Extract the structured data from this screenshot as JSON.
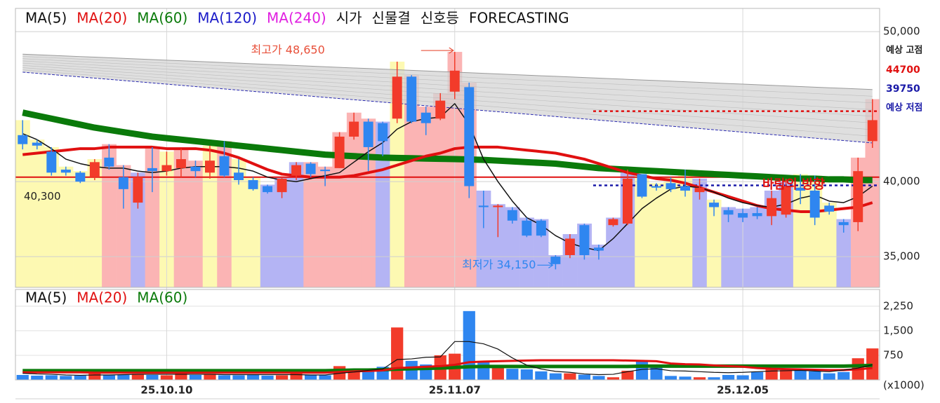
{
  "chart_data": {
    "type": "candlestick",
    "legend_extra": [
      {
        "label": "MA(120)",
        "color": "#1a1ac8"
      },
      {
        "label": "MA(240)",
        "color": "#e020e0"
      }
    ],
    "indicators": [
      "시가",
      "신물결",
      "신호등",
      "FORECASTING"
    ],
    "categories": [
      null,
      null,
      null,
      null,
      null,
      null,
      null,
      null,
      null,
      null,
      "25.10.10",
      null,
      null,
      null,
      null,
      null,
      null,
      null,
      null,
      null,
      null,
      null,
      null,
      null,
      null,
      null,
      null,
      null,
      null,
      null,
      "25.11.07",
      null,
      null,
      null,
      null,
      null,
      null,
      null,
      null,
      null,
      null,
      null,
      null,
      null,
      null,
      null,
      null,
      null,
      null,
      null,
      "25.12.05",
      null,
      null,
      null,
      null,
      null,
      null,
      null,
      null,
      null
    ],
    "open": [
      43100,
      42600,
      42000,
      40800,
      40600,
      40300,
      41600,
      40300,
      38600,
      40900,
      40700,
      40900,
      41000,
      40600,
      41700,
      40600,
      40100,
      39700,
      39300,
      40400,
      41200,
      40800,
      40900,
      43000,
      44000,
      43900,
      44200,
      47000,
      44600,
      44200,
      46000,
      46300,
      38400,
      38300,
      38100,
      37400,
      37400,
      35000,
      35100,
      37100,
      35600,
      37100,
      37200,
      40500,
      39700,
      39900,
      39700,
      39300,
      38600,
      38100,
      37900,
      37900,
      37700,
      37800,
      39600,
      39400,
      38400,
      37300,
      37300,
      42700
    ],
    "high": [
      44100,
      42800,
      42300,
      41000,
      40700,
      41500,
      42500,
      41100,
      40600,
      42300,
      42000,
      42200,
      41400,
      42400,
      42700,
      41500,
      40300,
      39800,
      40300,
      41300,
      41300,
      41000,
      43300,
      44600,
      44200,
      44000,
      48000,
      47100,
      45000,
      45900,
      48650,
      46600,
      39400,
      38500,
      38300,
      37600,
      37500,
      35100,
      36500,
      37200,
      35800,
      37600,
      40800,
      40500,
      39900,
      40300,
      40800,
      40200,
      38800,
      38300,
      38200,
      38300,
      39400,
      40200,
      40500,
      40400,
      38600,
      37500,
      41600,
      45500
    ],
    "low": [
      42150,
      42150,
      40400,
      40400,
      39900,
      40100,
      40800,
      38200,
      38200,
      39300,
      40400,
      40300,
      40300,
      40200,
      40300,
      39800,
      39400,
      39200,
      38900,
      40100,
      40300,
      39700,
      40900,
      42800,
      40700,
      41700,
      43900,
      43900,
      43100,
      44100,
      45500,
      38900,
      36900,
      36300,
      37200,
      36300,
      36300,
      34150,
      34900,
      34800,
      34800,
      37000,
      37100,
      38900,
      39400,
      39300,
      39000,
      38800,
      37700,
      37300,
      37300,
      37500,
      37100,
      37600,
      38500,
      37100,
      37800,
      36600,
      36700,
      42250
    ],
    "close": [
      42500,
      42400,
      40600,
      40600,
      40000,
      41300,
      41000,
      39500,
      40300,
      40700,
      41100,
      41500,
      40700,
      41400,
      40400,
      40100,
      39500,
      39300,
      40200,
      41100,
      40500,
      40700,
      43000,
      44000,
      42300,
      42700,
      47000,
      44000,
      43900,
      45400,
      47400,
      39700,
      38300,
      38400,
      37400,
      36400,
      36400,
      34500,
      36200,
      35100,
      35400,
      37500,
      40200,
      39000,
      39600,
      39500,
      39400,
      39600,
      38300,
      37800,
      37600,
      37700,
      38900,
      39700,
      39400,
      37600,
      38000,
      37100,
      40700,
      44100
    ],
    "up_color": "#f23b2a",
    "down_color": "#2f86f0",
    "series": [
      {
        "name": "MA(5)",
        "color": "#111111",
        "width": 1.5,
        "values": [
          43200,
          42800,
          42200,
          41500,
          41200,
          41000,
          40900,
          40900,
          40700,
          40600,
          40700,
          40900,
          41000,
          41000,
          41000,
          40900,
          40700,
          40300,
          40100,
          40000,
          40200,
          40400,
          40600,
          41300,
          42000,
          42600,
          43500,
          44000,
          44200,
          44300,
          45200,
          43800,
          41500,
          40000,
          38700,
          37600,
          37100,
          36400,
          35900,
          35600,
          35400,
          36200,
          37200,
          38200,
          38900,
          39500,
          39700,
          39600,
          39300,
          38900,
          38600,
          38400,
          38300,
          38500,
          38900,
          39100,
          38700,
          38600,
          39000,
          39700
        ]
      },
      {
        "name": "MA(20)",
        "color": "#e01010",
        "width": 4,
        "values": [
          41800,
          41900,
          42000,
          42100,
          42200,
          42200,
          42300,
          42300,
          42300,
          42300,
          42200,
          42200,
          42200,
          42100,
          41900,
          41600,
          41200,
          40800,
          40500,
          40400,
          40300,
          40300,
          40300,
          40400,
          40600,
          40800,
          41100,
          41400,
          41700,
          41900,
          42200,
          42300,
          42300,
          42300,
          42200,
          42100,
          42000,
          41900,
          41700,
          41500,
          41200,
          40900,
          40600,
          40400,
          40200,
          40100,
          39900,
          39600,
          39300,
          39000,
          38700,
          38400,
          38200,
          38100,
          38000,
          38000,
          38100,
          38200,
          38300,
          38600
        ]
      },
      {
        "name": "MA(60)",
        "color": "#0a7a0a",
        "width": 9,
        "values": [
          44600,
          44400,
          44200,
          44000,
          43800,
          43600,
          43450,
          43300,
          43150,
          43000,
          42900,
          42800,
          42700,
          42600,
          42500,
          42400,
          42300,
          42200,
          42100,
          42000,
          41900,
          41800,
          41750,
          41700,
          41650,
          41600,
          41580,
          41560,
          41540,
          41520,
          41500,
          41480,
          41450,
          41400,
          41350,
          41300,
          41250,
          41200,
          41100,
          41000,
          40900,
          40850,
          40800,
          40750,
          40700,
          40650,
          40600,
          40550,
          40500,
          40450,
          40400,
          40350,
          40300,
          40250,
          40200,
          40200,
          40150,
          40150,
          40100,
          40100
        ]
      }
    ],
    "forecast": {
      "fill": "#d4d4d4",
      "edge": "#9a9a9a",
      "lower_color": "#2a2ab0",
      "upper": [
        48500,
        48460,
        48420,
        48380,
        48340,
        48300,
        48260,
        48220,
        48180,
        48140,
        48100,
        48060,
        48020,
        47980,
        47940,
        47900,
        47860,
        47820,
        47780,
        47740,
        47700,
        47660,
        47620,
        47580,
        47540,
        47500,
        47460,
        47420,
        47380,
        47340,
        47300,
        47260,
        47220,
        47180,
        47140,
        47100,
        47060,
        47020,
        46980,
        46940,
        46900,
        46860,
        46820,
        46780,
        46740,
        46700,
        46660,
        46620,
        46580,
        46540,
        46500,
        46460,
        46420,
        46380,
        46340,
        46300,
        46260,
        46220,
        46180,
        46140
      ],
      "lower": [
        47300,
        47220,
        47140,
        47060,
        46980,
        46900,
        46820,
        46740,
        46660,
        46580,
        46500,
        46420,
        46340,
        46260,
        46180,
        46100,
        46020,
        45940,
        45860,
        45780,
        45700,
        45620,
        45540,
        45460,
        45380,
        45300,
        45220,
        45140,
        45060,
        44980,
        44900,
        44820,
        44740,
        44660,
        44580,
        44500,
        44420,
        44340,
        44260,
        44180,
        44100,
        44020,
        43940,
        43860,
        43780,
        43700,
        43620,
        43540,
        43460,
        43380,
        43300,
        43220,
        43140,
        43060,
        42980,
        42900,
        42820,
        42740,
        42660,
        42580
      ]
    },
    "signals": "YYYYYYRRBRYRRYRYYBBBRRRRRBYRRRRRBBBBBBBBBBBYYYYBYBBBBBYYYBRR",
    "signal_colors": {
      "Y": "#fdf9b2",
      "R": "#fbb4b4",
      "B": "#b4b4f4"
    },
    "ylim": [
      32950,
      51550
    ],
    "yticks": [
      {
        "value": 50000,
        "label": "50,000"
      },
      {
        "value": 40000,
        "label": "40,000"
      },
      {
        "value": 35000,
        "label": "35,000"
      }
    ],
    "grid": true,
    "ref_line": {
      "value": 40300,
      "label": "40,300",
      "color": "#e01010"
    },
    "forecast_high": {
      "value": 44700,
      "label": "예상 고점",
      "value_label": "44700",
      "color": "#e01010"
    },
    "forecast_low": {
      "value": 39750,
      "label": "예상 저점",
      "value_label": "39750",
      "color": "#1a1aa8"
    },
    "high_note": {
      "text": "최고가 48,650",
      "value": 48650,
      "color": "#e8503a"
    },
    "low_note": {
      "text": "최저가 34,150",
      "value": 34150,
      "color": "#2f86f0"
    },
    "wind_note": "바람의 방향",
    "volume": {
      "values": [
        150,
        130,
        140,
        120,
        130,
        200,
        140,
        150,
        180,
        150,
        140,
        200,
        150,
        180,
        140,
        140,
        170,
        130,
        140,
        200,
        150,
        140,
        420,
        320,
        300,
        400,
        1600,
        580,
        470,
        750,
        800,
        2100,
        560,
        440,
        340,
        320,
        260,
        200,
        200,
        160,
        120,
        80,
        280,
        560,
        380,
        120,
        100,
        80,
        80,
        150,
        140,
        240,
        330,
        300,
        320,
        260,
        200,
        240,
        660,
        960
      ],
      "series": [
        {
          "name": "MA(5)",
          "color": "#111111",
          "width": 1.2,
          "values": [
            200,
            180,
            170,
            150,
            140,
            150,
            150,
            160,
            170,
            170,
            170,
            170,
            170,
            170,
            160,
            160,
            160,
            160,
            160,
            160,
            150,
            150,
            200,
            240,
            290,
            330,
            620,
            640,
            690,
            700,
            1170,
            1170,
            1100,
            940,
            670,
            450,
            330,
            260,
            230,
            180,
            160,
            170,
            250,
            320,
            340,
            280,
            270,
            250,
            230,
            220,
            230,
            250,
            270,
            280,
            290,
            270,
            250,
            300,
            360,
            460
          ]
        },
        {
          "name": "MA(20)",
          "color": "#e01010",
          "width": 3,
          "values": [
            230,
            230,
            230,
            230,
            230,
            220,
            220,
            220,
            220,
            220,
            220,
            220,
            220,
            220,
            220,
            220,
            220,
            220,
            220,
            220,
            220,
            220,
            240,
            260,
            270,
            290,
            360,
            380,
            400,
            420,
            460,
            540,
            560,
            570,
            580,
            590,
            600,
            600,
            600,
            600,
            600,
            600,
            590,
            580,
            570,
            500,
            480,
            470,
            440,
            420,
            400,
            360,
            340,
            330,
            320,
            310,
            300,
            300,
            320,
            360
          ]
        },
        {
          "name": "MA(60)",
          "color": "#0a7a0a",
          "width": 5,
          "values": [
            280,
            280,
            280,
            280,
            280,
            280,
            280,
            280,
            280,
            280,
            280,
            280,
            280,
            280,
            280,
            280,
            280,
            280,
            280,
            280,
            280,
            280,
            290,
            300,
            300,
            310,
            330,
            340,
            350,
            360,
            380,
            400,
            410,
            410,
            410,
            410,
            410,
            410,
            410,
            410,
            410,
            410,
            410,
            420,
            420,
            420,
            420,
            420,
            420,
            420,
            420,
            420,
            420,
            420,
            420,
            420,
            420,
            420,
            430,
            440
          ]
        }
      ],
      "ylim": [
        0,
        2760
      ],
      "yticks": [
        {
          "value": 2250,
          "label": "2,250"
        },
        {
          "value": 1500,
          "label": "1,500"
        },
        750
      ],
      "unit": "(x1000)"
    }
  }
}
